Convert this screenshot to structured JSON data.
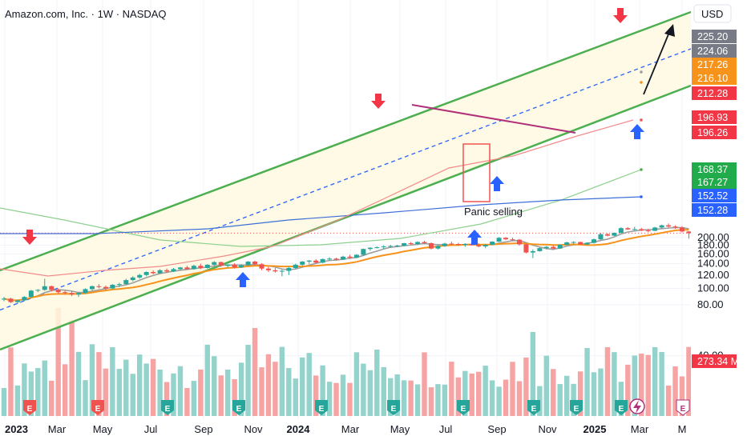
{
  "header": {
    "title": "Amazon.com, Inc. · 1W · NASDAQ"
  },
  "currency_button": {
    "label": "USD"
  },
  "price_axis": {
    "ticks": [
      "200.00",
      "180.00",
      "160.00",
      "140.00",
      "120.00",
      "100.00",
      "80.00",
      "40.00"
    ]
  },
  "time_axis": {
    "ticks": [
      {
        "label": "2023",
        "bold": true
      },
      {
        "label": "Mar",
        "bold": false
      },
      {
        "label": "May",
        "bold": false
      },
      {
        "label": "Jul",
        "bold": false
      },
      {
        "label": "Sep",
        "bold": false
      },
      {
        "label": "Nov",
        "bold": false
      },
      {
        "label": "2024",
        "bold": true
      },
      {
        "label": "Mar",
        "bold": false
      },
      {
        "label": "May",
        "bold": false
      },
      {
        "label": "Jul",
        "bold": false
      },
      {
        "label": "Sep",
        "bold": false
      },
      {
        "label": "Nov",
        "bold": false
      },
      {
        "label": "2025",
        "bold": true
      },
      {
        "label": "Mar",
        "bold": false
      },
      {
        "label": "M",
        "bold": false
      }
    ]
  },
  "price_badges": [
    {
      "label": "225.20",
      "color": "#787b86"
    },
    {
      "label": "224.06",
      "color": "#787b86"
    },
    {
      "label": "217.26",
      "color": "#f7931a"
    },
    {
      "label": "216.10",
      "color": "#f7931a"
    },
    {
      "label": "212.28",
      "color": "#f23645"
    },
    {
      "label": "196.93",
      "color": "#f23645"
    },
    {
      "label": "196.26",
      "color": "#f23645"
    },
    {
      "label": "168.37",
      "color": "#22ab4b"
    },
    {
      "label": "167.27",
      "color": "#22ab4b"
    },
    {
      "label": "152.52",
      "color": "#2962ff"
    },
    {
      "label": "152.28",
      "color": "#2962ff"
    },
    {
      "label": "273.34 M",
      "color": "#f23645"
    }
  ],
  "annotation": {
    "text": "Panic selling"
  },
  "events": {
    "earnings_letter": "E"
  },
  "colors": {
    "up": "#26a69a",
    "down": "#ef5350",
    "vol_up": "#93d3cb",
    "vol_down": "#f5a3a3",
    "channel": "#4caf50",
    "channel_fill": "#fff9e0",
    "ma_fast": "#9e9e9e",
    "ma_mid": "#f7931a",
    "ma_slow_red": "#f28b8b",
    "ma_green": "#8ed08e",
    "ma_blue": "#3d6fd8",
    "arrow_up": "#2962ff",
    "arrow_down": "#f23645",
    "resistance": "#b0307a"
  },
  "chart_data": {
    "type": "candlestick",
    "title": "Amazon.com, Inc. · 1W · NASDAQ",
    "interval": "1W",
    "y_scale": "log",
    "currency": "USD",
    "ylim": [
      35,
      245
    ],
    "start_date": "2022-12-05",
    "last_price": 212.28,
    "last_volume_millions": 273.34,
    "candles_weekly": [
      [
        86,
        89,
        84,
        87
      ],
      [
        87,
        88,
        82,
        83
      ],
      [
        83,
        86,
        81,
        85
      ],
      [
        85,
        90,
        84,
        89
      ],
      [
        89,
        98,
        88,
        97
      ],
      [
        97,
        99,
        95,
        98
      ],
      [
        98,
        114,
        97,
        103
      ],
      [
        103,
        104,
        96,
        98
      ],
      [
        98,
        100,
        93,
        95
      ],
      [
        95,
        97,
        92,
        94
      ],
      [
        94,
        96,
        90,
        92
      ],
      [
        92,
        95,
        89,
        94
      ],
      [
        94,
        100,
        93,
        99
      ],
      [
        99,
        104,
        97,
        103
      ],
      [
        103,
        106,
        100,
        102
      ],
      [
        102,
        104,
        98,
        100
      ],
      [
        100,
        106,
        99,
        105
      ],
      [
        105,
        108,
        102,
        106
      ],
      [
        106,
        114,
        105,
        112
      ],
      [
        112,
        118,
        110,
        116
      ],
      [
        116,
        122,
        114,
        120
      ],
      [
        120,
        126,
        118,
        125
      ],
      [
        125,
        128,
        121,
        123
      ],
      [
        123,
        130,
        122,
        128
      ],
      [
        128,
        131,
        124,
        126
      ],
      [
        126,
        132,
        125,
        130
      ],
      [
        130,
        134,
        128,
        133
      ],
      [
        133,
        136,
        129,
        130
      ],
      [
        130,
        138,
        129,
        136
      ],
      [
        136,
        140,
        130,
        132
      ],
      [
        132,
        139,
        131,
        138
      ],
      [
        138,
        145,
        136,
        143
      ],
      [
        143,
        144,
        134,
        136
      ],
      [
        136,
        139,
        133,
        138
      ],
      [
        138,
        141,
        131,
        133
      ],
      [
        133,
        139,
        132,
        137
      ],
      [
        137,
        145,
        136,
        144
      ],
      [
        144,
        146,
        137,
        139
      ],
      [
        139,
        141,
        128,
        131
      ],
      [
        131,
        134,
        125,
        128
      ],
      [
        128,
        132,
        124,
        126
      ],
      [
        126,
        129,
        118,
        127
      ],
      [
        127,
        134,
        120,
        132
      ],
      [
        132,
        140,
        130,
        138
      ],
      [
        138,
        145,
        136,
        144
      ],
      [
        144,
        147,
        140,
        146
      ],
      [
        146,
        149,
        141,
        142
      ],
      [
        142,
        150,
        141,
        149
      ],
      [
        149,
        153,
        146,
        150
      ],
      [
        150,
        152,
        146,
        148
      ],
      [
        148,
        156,
        147,
        154
      ],
      [
        154,
        158,
        150,
        152
      ],
      [
        152,
        159,
        151,
        158
      ],
      [
        158,
        172,
        156,
        171
      ],
      [
        171,
        175,
        167,
        174
      ],
      [
        174,
        177,
        172,
        175
      ],
      [
        175,
        180,
        171,
        177
      ],
      [
        177,
        181,
        174,
        178
      ],
      [
        178,
        181,
        175,
        179
      ],
      [
        179,
        186,
        177,
        185
      ],
      [
        185,
        188,
        181,
        183
      ],
      [
        183,
        190,
        180,
        188
      ],
      [
        188,
        191,
        183,
        185
      ],
      [
        185,
        187,
        170,
        172
      ],
      [
        172,
        180,
        170,
        178
      ],
      [
        178,
        186,
        176,
        184
      ],
      [
        184,
        189,
        181,
        183
      ],
      [
        183,
        186,
        179,
        181
      ],
      [
        181,
        185,
        176,
        183
      ],
      [
        183,
        186,
        179,
        180
      ],
      [
        180,
        185,
        175,
        177
      ],
      [
        177,
        183,
        173,
        181
      ],
      [
        181,
        190,
        180,
        189
      ],
      [
        189,
        201,
        188,
        199
      ],
      [
        199,
        201,
        193,
        195
      ],
      [
        195,
        199,
        190,
        194
      ],
      [
        194,
        196,
        179,
        182
      ],
      [
        182,
        184,
        161,
        163
      ],
      [
        163,
        170,
        151,
        166
      ],
      [
        166,
        175,
        165,
        173
      ],
      [
        173,
        178,
        170,
        176
      ],
      [
        176,
        180,
        171,
        172
      ],
      [
        172,
        182,
        171,
        181
      ],
      [
        181,
        189,
        180,
        187
      ],
      [
        187,
        190,
        183,
        188
      ],
      [
        188,
        189,
        181,
        182
      ],
      [
        182,
        187,
        181,
        186
      ],
      [
        186,
        197,
        184,
        195
      ],
      [
        195,
        213,
        193,
        209
      ],
      [
        209,
        212,
        203,
        205
      ],
      [
        205,
        214,
        204,
        213
      ],
      [
        213,
        230,
        212,
        227
      ],
      [
        227,
        230,
        222,
        223
      ],
      [
        223,
        231,
        219,
        224
      ],
      [
        224,
        228,
        218,
        220
      ],
      [
        220,
        225,
        215,
        219
      ],
      [
        219,
        231,
        218,
        229
      ],
      [
        229,
        238,
        226,
        236
      ],
      [
        236,
        242,
        229,
        232
      ],
      [
        232,
        236,
        225,
        229
      ],
      [
        229,
        233,
        214,
        217
      ],
      [
        217,
        218,
        197,
        212
      ]
    ],
    "volume_unit": "millions"
  }
}
